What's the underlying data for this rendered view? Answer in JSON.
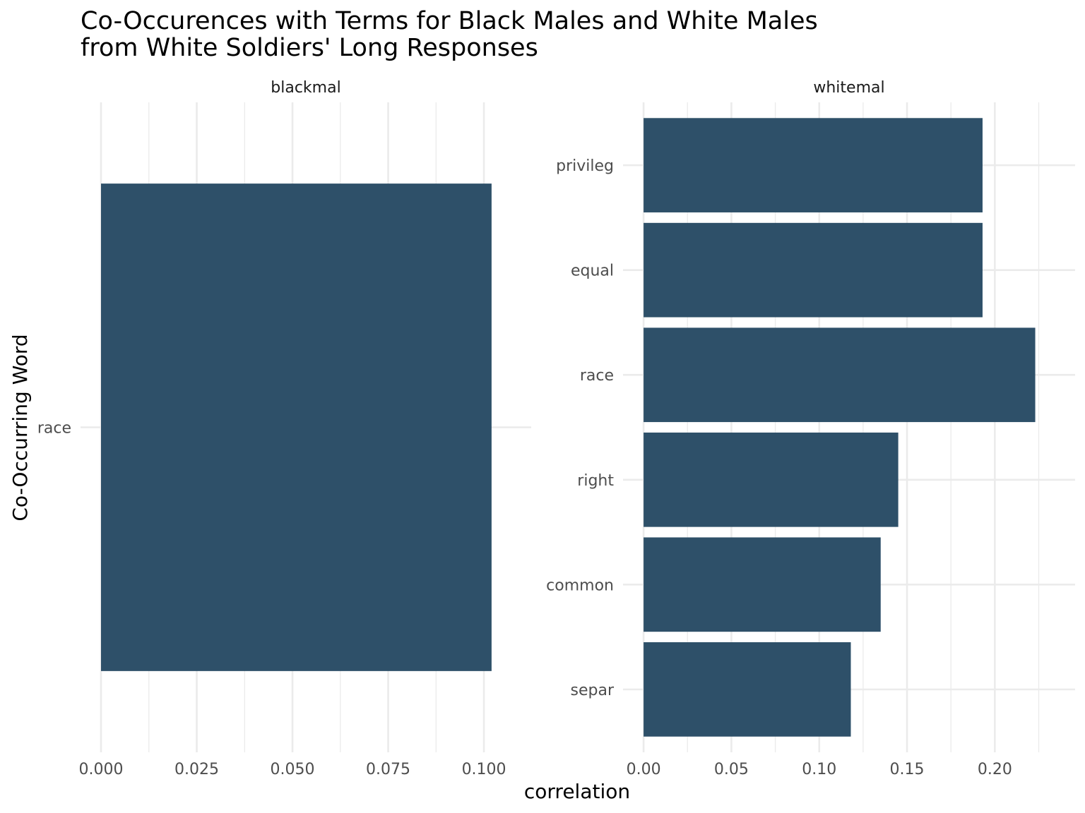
{
  "chart_data": {
    "type": "bar",
    "orientation": "horizontal",
    "title_lines": [
      "Co-Occurences with Terms for Black Males and White Males",
      "from White Soldiers' Long Responses"
    ],
    "xlabel": "correlation",
    "ylabel": "Co-Occurring Word",
    "color": "#2e5069",
    "grid": true,
    "panels": [
      {
        "name": "blackmal",
        "categories": [
          "race"
        ],
        "values": [
          0.102
        ],
        "xlim": [
          0,
          0.107
        ],
        "x_ticks": [
          0,
          0.025,
          0.05,
          0.075,
          0.1
        ],
        "x_tick_labels": [
          "0.000",
          "0.025",
          "0.050",
          "0.075",
          "0.100"
        ]
      },
      {
        "name": "whitemal",
        "categories": [
          "privileg",
          "equal",
          "race",
          "right",
          "common",
          "separ"
        ],
        "values": [
          0.193,
          0.193,
          0.223,
          0.145,
          0.135,
          0.118
        ],
        "xlim": [
          0,
          0.234
        ],
        "x_ticks": [
          0,
          0.05,
          0.1,
          0.15,
          0.2
        ],
        "x_tick_labels": [
          "0.00",
          "0.05",
          "0.10",
          "0.15",
          "0.20"
        ]
      }
    ]
  }
}
